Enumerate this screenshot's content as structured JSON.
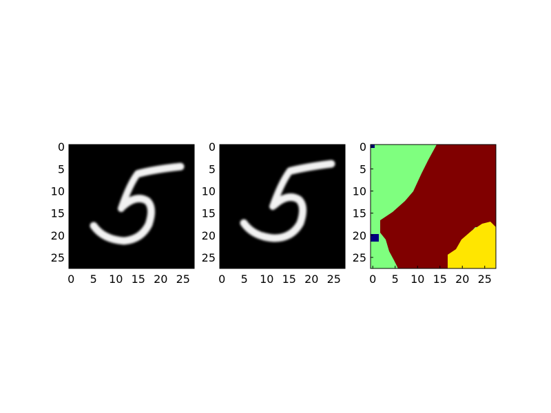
{
  "chart_data": [
    {
      "type": "heatmap",
      "cmap": "gray",
      "title": "",
      "xlabel": "",
      "ylabel": "",
      "xlim": [
        0,
        27
      ],
      "ylim": [
        27,
        0
      ],
      "x_ticks": [
        "0",
        "5",
        "10",
        "15",
        "20",
        "25"
      ],
      "y_ticks": [
        "0",
        "5",
        "10",
        "15",
        "20",
        "25"
      ],
      "content": "handwritten digit 5 (white on black)"
    },
    {
      "type": "heatmap",
      "cmap": "gray",
      "title": "",
      "xlabel": "",
      "ylabel": "",
      "xlim": [
        0,
        27
      ],
      "ylim": [
        27,
        0
      ],
      "x_ticks": [
        "0",
        "5",
        "10",
        "15",
        "20",
        "25"
      ],
      "y_ticks": [
        "0",
        "5",
        "10",
        "15",
        "20",
        "25"
      ],
      "content": "handwritten digit 5 (white on black)"
    },
    {
      "type": "heatmap",
      "cmap": "jet",
      "title": "",
      "xlabel": "",
      "ylabel": "",
      "xlim": [
        0,
        27
      ],
      "ylim": [
        27,
        0
      ],
      "x_ticks": [
        "0",
        "5",
        "10",
        "15",
        "20",
        "25"
      ],
      "y_ticks": [
        "0",
        "5",
        "10",
        "15",
        "20",
        "25"
      ],
      "region_colors": {
        "light_green": "#7fff7f",
        "dark_red": "#800000",
        "yellow": "#ffe600",
        "navy": "#000080"
      }
    }
  ]
}
